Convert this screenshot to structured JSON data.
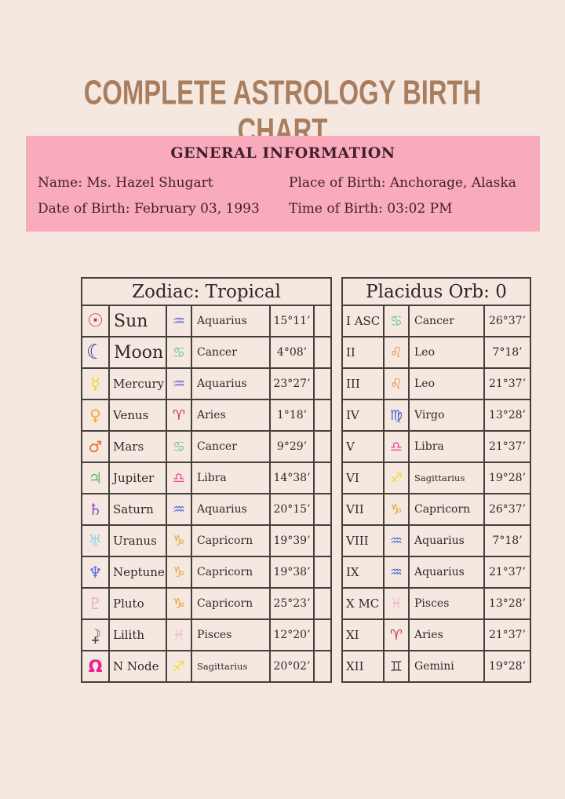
{
  "page": {
    "title": "COMPLETE ASTROLOGY BIRTH CHART"
  },
  "colors": {
    "page_background": "#f5e8e1",
    "panel_pink": "#f9aabb",
    "title_brown": "#a97e5f",
    "table_border": "#45403a",
    "text_ink": "#2e2a26",
    "panel_ink": "#411f2d"
  },
  "general_info": {
    "heading": "GENERAL INFORMATION",
    "name": "Name: Ms. Hazel Shugart",
    "dob": "Date of Birth: February 03, 1993",
    "place": "Place of Birth: Anchorage, Alaska",
    "time": "Time of Birth: 03:02 PM"
  },
  "zodiac": {
    "header": "Zodiac: Tropical",
    "rows": [
      {
        "planet": "Sun",
        "planet_glyph": "☉",
        "planet_color": "#c23b4e",
        "sign": "Aquarius",
        "sign_glyph": "♒",
        "sign_color": "#5a6ad6",
        "degrees": "15°11’"
      },
      {
        "planet": "Moon",
        "planet_glyph": "☾",
        "planet_color": "#2b3f92",
        "sign": "Cancer",
        "sign_glyph": "♋",
        "sign_color": "#6ecb92",
        "degrees": "4°08’"
      },
      {
        "planet": "Mercury",
        "planet_glyph": "☿",
        "planet_color": "#f2d41f",
        "sign": "Aquarius",
        "sign_glyph": "♒",
        "sign_color": "#5a6ad6",
        "degrees": "23°27’"
      },
      {
        "planet": "Venus",
        "planet_glyph": "♀",
        "planet_color": "#f0ab2e",
        "sign": "Aries",
        "sign_glyph": "♈",
        "sign_color": "#c43548",
        "degrees": "1°18’"
      },
      {
        "planet": "Mars",
        "planet_glyph": "♂",
        "planet_color": "#ee7426",
        "sign": "Cancer",
        "sign_glyph": "♋",
        "sign_color": "#6ecb92",
        "degrees": "9°29’"
      },
      {
        "planet": "Jupiter",
        "planet_glyph": "♃",
        "planet_color": "#5fbe6e",
        "sign": "Libra",
        "sign_glyph": "♎",
        "sign_color": "#f2449a",
        "degrees": "14°38’"
      },
      {
        "planet": "Saturn",
        "planet_glyph": "♄",
        "planet_color": "#9143c6",
        "sign": "Aquarius",
        "sign_glyph": "♒",
        "sign_color": "#5a6ad6",
        "degrees": "20°15’"
      },
      {
        "planet": "Uranus",
        "planet_glyph": "♅",
        "planet_color": "#9fd4e6",
        "sign": "Capricorn",
        "sign_glyph": "♑",
        "sign_color": "#eda52f",
        "degrees": "19°39’"
      },
      {
        "planet": "Neptune",
        "planet_glyph": "♆",
        "planet_color": "#5b6cd6",
        "sign": "Capricorn",
        "sign_glyph": "♑",
        "sign_color": "#eda52f",
        "degrees": "19°38’"
      },
      {
        "planet": "Pluto",
        "planet_glyph": "♇",
        "planet_color": "#f2a6c4",
        "sign": "Capricorn",
        "sign_glyph": "♑",
        "sign_color": "#eda52f",
        "degrees": "25°23’"
      },
      {
        "planet": "Lilith",
        "planet_glyph": "☽",
        "planet_glyph2": "+",
        "planet_color": "#3c3835",
        "sign": "Pisces",
        "sign_glyph": "♓",
        "sign_color": "#f1b8c8",
        "degrees": "12°20’"
      },
      {
        "planet": "N Node",
        "planet_glyph": "Ω",
        "planet_color": "#e91d8d",
        "sign": "Sagittarius",
        "sign_glyph": "♐",
        "sign_color": "#f0e02b",
        "degrees": "20°02’"
      }
    ]
  },
  "houses": {
    "header": "Placidus Orb: 0",
    "rows": [
      {
        "house": "I ASC",
        "sign": "Cancer",
        "sign_glyph": "♋",
        "sign_color": "#6ecb92",
        "degrees": "26°37’"
      },
      {
        "house": "II",
        "sign": "Leo",
        "sign_glyph": "♌",
        "sign_color": "#ee8b3c",
        "degrees": "7°18’"
      },
      {
        "house": "III",
        "sign": "Leo",
        "sign_glyph": "♌",
        "sign_color": "#ee8b3c",
        "degrees": "21°37’"
      },
      {
        "house": "IV",
        "sign": "Virgo",
        "sign_glyph": "♍",
        "sign_color": "#4f63cc",
        "degrees": "13°28’"
      },
      {
        "house": "V",
        "sign": "Libra",
        "sign_glyph": "♎",
        "sign_color": "#f2449a",
        "degrees": "21°37’"
      },
      {
        "house": "VI",
        "sign": "Sagittarius",
        "sign_glyph": "♐",
        "sign_color": "#f0e02b",
        "degrees": "19°28’"
      },
      {
        "house": "VII",
        "sign": "Capricorn",
        "sign_glyph": "♑",
        "sign_color": "#eda52f",
        "degrees": "26°37’"
      },
      {
        "house": "VIII",
        "sign": "Aquarius",
        "sign_glyph": "♒",
        "sign_color": "#5a6ad6",
        "degrees": "7°18’"
      },
      {
        "house": "IX",
        "sign": "Aquarius",
        "sign_glyph": "♒",
        "sign_color": "#5a6ad6",
        "degrees": "21°37’"
      },
      {
        "house": "X MC",
        "sign": "Pisces",
        "sign_glyph": "♓",
        "sign_color": "#f1b8c8",
        "degrees": "13°28’"
      },
      {
        "house": "XI",
        "sign": "Aries",
        "sign_glyph": "♈",
        "sign_color": "#c43548",
        "degrees": "21°37’"
      },
      {
        "house": "XII",
        "sign": "Gemini",
        "sign_glyph": "♊",
        "sign_color": "#44403c",
        "degrees": "19°28’"
      }
    ]
  }
}
